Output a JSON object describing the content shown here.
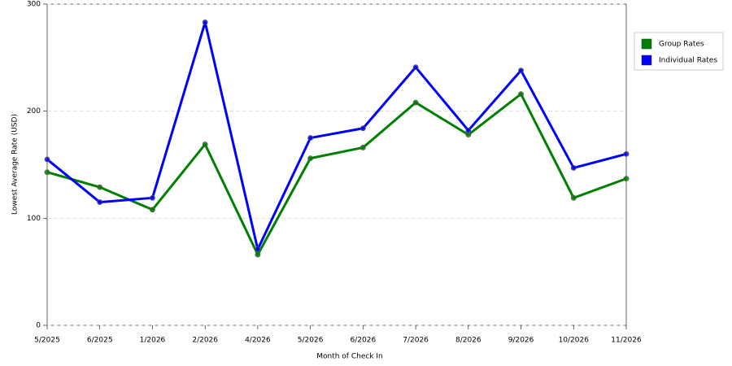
{
  "chart_data": {
    "type": "line",
    "x_label": "Month of Check In",
    "y_label": "Lowest Average Rate (USD)",
    "categories": [
      "5/2025",
      "6/2025",
      "1/2026",
      "2/2026",
      "4/2026",
      "5/2026",
      "6/2026",
      "7/2026",
      "8/2026",
      "9/2026",
      "10/2026",
      "11/2026"
    ],
    "series": [
      {
        "name": "Group Rates",
        "color": "#008000",
        "values": [
          143,
          129,
          108,
          169,
          66,
          156,
          166,
          208,
          178,
          216,
          119,
          137
        ]
      },
      {
        "name": "Individual Rates",
        "color": "#0000ff",
        "values": [
          155,
          115,
          119,
          283,
          71,
          175,
          184,
          241,
          182,
          238,
          147,
          160
        ]
      }
    ],
    "ylim": [
      0,
      300
    ],
    "yticks": [
      0,
      100,
      200,
      300
    ],
    "grid": true,
    "legend": "right"
  }
}
